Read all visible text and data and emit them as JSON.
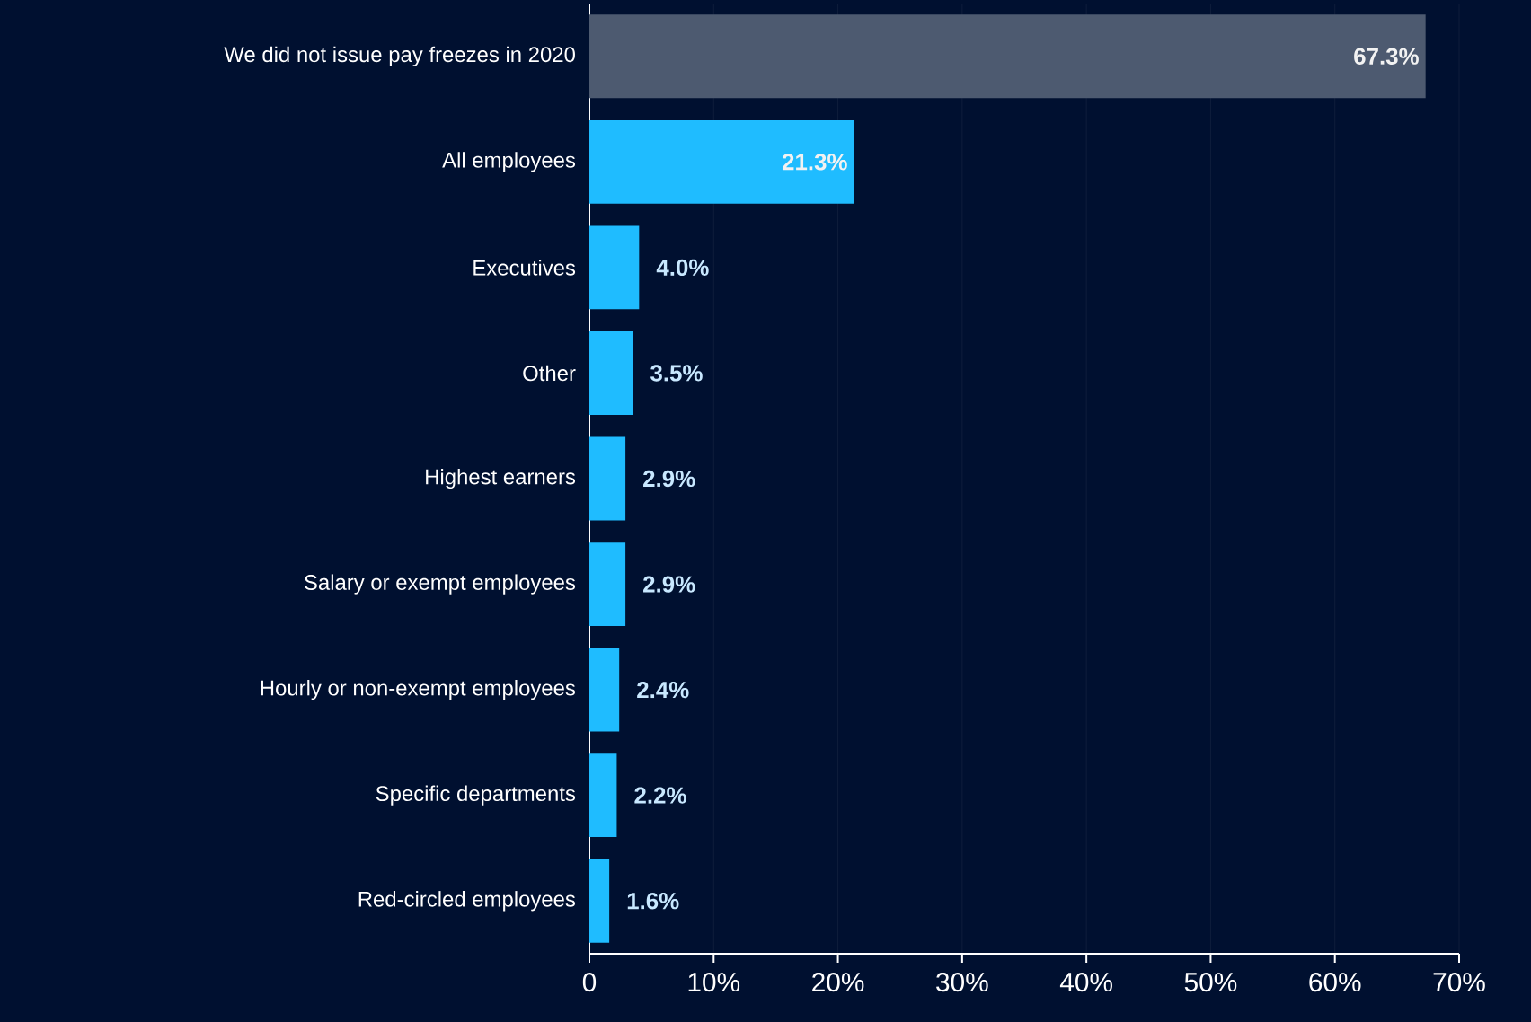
{
  "chart_data": {
    "type": "bar",
    "orientation": "horizontal",
    "categories": [
      "We did not issue pay freezes in 2020",
      "All employees",
      "Executives",
      "Other",
      "Highest earners",
      "Salary or exempt employees",
      "Hourly or non-exempt employees",
      "Specific departments",
      "Red-circled employees"
    ],
    "values": [
      67.3,
      21.3,
      4.0,
      3.5,
      2.9,
      2.9,
      2.4,
      2.2,
      1.6
    ],
    "value_labels": [
      "67.3%",
      "21.3%",
      "4.0%",
      "3.5%",
      "2.9%",
      "2.9%",
      "2.4%",
      "2.2%",
      "1.6%"
    ],
    "colors": [
      "#4d5a70",
      "#1fbcff",
      "#1fbcff",
      "#1fbcff",
      "#1fbcff",
      "#1fbcff",
      "#1fbcff",
      "#1fbcff",
      "#1fbcff"
    ],
    "xlim": [
      0,
      70
    ],
    "xticks": [
      0,
      {
        "value": 10,
        "label": "10%"
      },
      {
        "value": 20,
        "label": "20%"
      },
      {
        "value": 30,
        "label": "30%"
      },
      {
        "value": 40,
        "label": "40%"
      },
      {
        "value": 50,
        "label": "50%"
      },
      {
        "value": 60,
        "label": "60%"
      },
      {
        "value": 70,
        "label": "70%"
      }
    ],
    "grid": "x"
  }
}
